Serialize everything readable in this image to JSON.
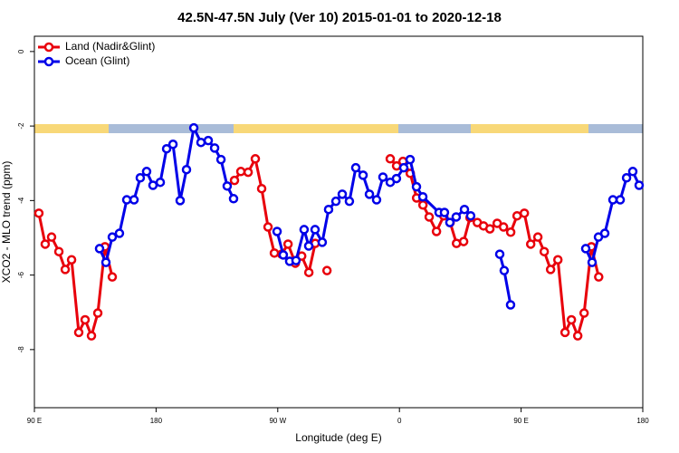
{
  "chart_data": {
    "type": "line",
    "title": "42.5N-47.5N July (Ver 10)   2015-01-01 to 2020-12-18",
    "xlabel": "Longitude (deg E)",
    "ylabel": "XCO2 - MLO trend (ppm)",
    "xlim": [
      90,
      540
    ],
    "ylim": [
      -9.56,
      0.41
    ],
    "xticks": [
      {
        "value": 90,
        "label": "90 E"
      },
      180,
      {
        "value": 270,
        "label": "90 W"
      },
      {
        "value": 360,
        "label": "0"
      },
      {
        "value": 450,
        "label": "90 E"
      },
      {
        "value": 540,
        "label": "180"
      }
    ],
    "yticks": [
      0,
      -2,
      -4,
      -6,
      -8
    ],
    "legend": "top-left",
    "series": [
      {
        "name": "Land (Nadir&Glint)",
        "color": "#e8000b",
        "x": [
          93.3,
          98.0,
          102.7,
          108.1,
          112.8,
          117.5,
          122.8,
          127.5,
          132.2,
          136.9,
          142.2,
          147.6,
          null,
          238.0,
          242.7,
          248.1,
          253.4,
          258.1,
          262.8,
          267.5,
          272.9,
          277.6,
          283.0,
          287.7,
          293.0,
          297.7,
          null,
          306.4,
          null,
          353.2,
          357.9,
          362.6,
          368.0,
          372.7,
          377.4,
          382.0,
          387.4,
          392.8,
          397.5,
          402.2,
          407.5,
          412.2,
          417.6,
          422.2,
          426.9,
          432.3,
          437.0,
          442.3,
          447.0,
          452.4,
          457.1,
          462.4,
          467.1,
          471.8,
          477.2,
          482.5,
          487.2,
          491.9,
          496.6,
          502.0,
          507.4
        ],
        "values": [
          -4.34,
          -5.17,
          -4.98,
          -5.37,
          -5.85,
          -5.59,
          -7.54,
          -7.2,
          -7.63,
          -7.02,
          -5.24,
          -6.05,
          null,
          -3.46,
          -3.22,
          -3.24,
          -2.88,
          -3.68,
          -4.71,
          -5.41,
          -5.44,
          -5.17,
          -5.68,
          -5.49,
          -5.93,
          -5.15,
          null,
          -5.88,
          null,
          -2.88,
          -3.07,
          -2.95,
          -3.27,
          -3.93,
          -4.12,
          -4.44,
          -4.83,
          -4.41,
          -4.59,
          -5.15,
          -5.1,
          -4.46,
          -4.59,
          -4.68,
          -4.76,
          -4.61,
          -4.71,
          -4.85,
          -4.41,
          -4.34,
          -5.17,
          -4.98,
          -5.37,
          -5.85,
          -5.59,
          -7.54,
          -7.2,
          -7.63,
          -7.02,
          -5.24,
          -6.05
        ]
      },
      {
        "name": "Ocean (Glint)",
        "color": "#0000e8",
        "x": [
          138.2,
          142.9,
          147.6,
          152.9,
          158.3,
          163.7,
          168.3,
          173.0,
          177.7,
          183.1,
          187.8,
          192.5,
          197.8,
          202.5,
          207.9,
          213.2,
          218.6,
          223.3,
          228.0,
          232.6,
          237.3,
          null,
          269.5,
          274.1,
          278.8,
          283.5,
          289.5,
          292.9,
          297.6,
          302.9,
          307.6,
          313.0,
          317.7,
          323.0,
          327.7,
          333.1,
          337.8,
          343.1,
          347.8,
          353.2,
          357.8,
          363.2,
          367.9,
          372.6,
          377.3,
          389.3,
          393.3,
          397.3,
          402.0,
          408.1,
          412.7,
          null,
          434.2,
          437.5,
          442.2,
          null,
          497.8,
          502.5,
          507.2,
          511.9,
          517.9,
          523.3,
          528.0,
          532.6,
          537.3
        ],
        "values": [
          -5.29,
          -5.66,
          -4.98,
          -4.88,
          -3.98,
          -3.98,
          -3.39,
          -3.22,
          -3.59,
          -3.51,
          -2.61,
          -2.49,
          -4.0,
          -3.17,
          -2.05,
          -2.44,
          -2.39,
          -2.59,
          -2.9,
          -3.61,
          -3.95,
          null,
          -4.83,
          -5.46,
          -5.63,
          -5.61,
          -4.78,
          -5.22,
          -4.78,
          -5.12,
          -4.24,
          -4.02,
          -3.83,
          -4.02,
          -3.12,
          -3.32,
          -3.83,
          -3.98,
          -3.37,
          -3.51,
          -3.41,
          -3.12,
          -2.9,
          -3.63,
          -3.9,
          -4.32,
          -4.32,
          -4.59,
          -4.44,
          -4.24,
          -4.41,
          null,
          -5.44,
          -5.88,
          -6.8,
          null,
          -5.29,
          -5.66,
          -4.98,
          -4.88,
          -3.98,
          -3.98,
          -3.39,
          -3.22,
          -3.59
        ]
      }
    ]
  }
}
